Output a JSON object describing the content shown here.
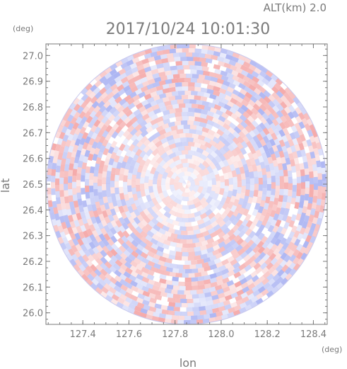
{
  "chart_data": {
    "type": "heatmap",
    "title": "2017/10/24 10:01:30",
    "altitude_label": "ALT(km) 2.0",
    "xlabel": "lon",
    "ylabel": "lat",
    "x_unit": "(deg)",
    "y_unit": "(deg)",
    "xlim": [
      127.24,
      128.46
    ],
    "ylim": [
      25.955,
      27.045
    ],
    "x_ticks": [
      {
        "value": 127.4,
        "label": "127.4"
      },
      {
        "value": 127.6,
        "label": "127.6"
      },
      {
        "value": 127.8,
        "label": "127.8"
      },
      {
        "value": 128.0,
        "label": "128.0"
      },
      {
        "value": 128.2,
        "label": "128.2"
      },
      {
        "value": 128.4,
        "label": "128.4"
      }
    ],
    "y_ticks": [
      {
        "value": 26.0,
        "label": "26.0"
      },
      {
        "value": 26.1,
        "label": "26.1"
      },
      {
        "value": 26.2,
        "label": "26.2"
      },
      {
        "value": 26.3,
        "label": "26.3"
      },
      {
        "value": 26.4,
        "label": "26.4"
      },
      {
        "value": 26.5,
        "label": "26.5"
      },
      {
        "value": 26.6,
        "label": "26.6"
      },
      {
        "value": 26.7,
        "label": "26.7"
      },
      {
        "value": 26.8,
        "label": "26.8"
      },
      {
        "value": 26.9,
        "label": "26.9"
      },
      {
        "value": 27.0,
        "label": "27.0"
      }
    ],
    "radar_center": {
      "lon": 127.85,
      "lat": 26.5
    },
    "radar_radius_deg_lat": 0.545,
    "colors": {
      "positive": "#f4a6a6",
      "negative": "#a9b2f2",
      "frame": "#7a7a7a"
    },
    "grid": false
  }
}
